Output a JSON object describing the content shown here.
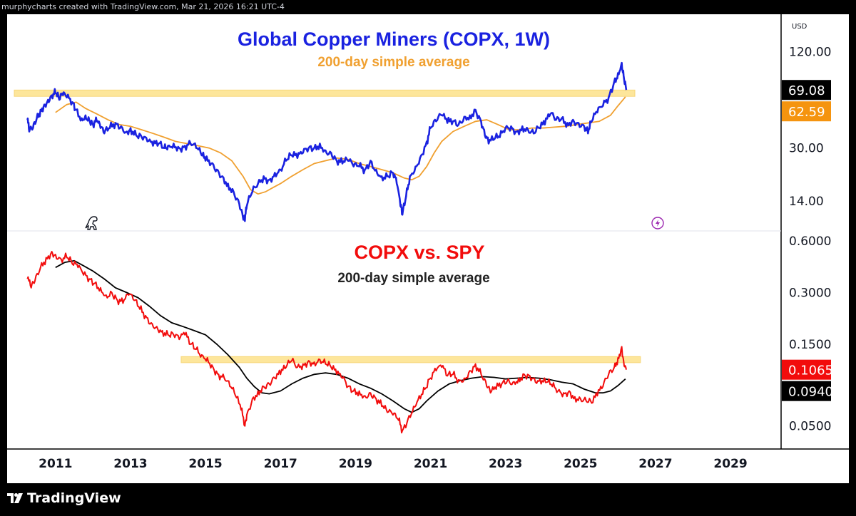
{
  "header": {
    "attribution": "murphycharts created with TradingView.com, Mar 21, 2026 16:21 UTC-4"
  },
  "footer": {
    "brand": "TradingView"
  },
  "chart_data": [
    {
      "type": "line",
      "title": "Global Copper Miners (COPX, 1W)",
      "subtitle": "200-day simple average",
      "currency": "USD",
      "yscale": "log",
      "ylim": [
        9.5,
        185
      ],
      "yticks": [
        {
          "value": 120,
          "label": "120.00"
        },
        {
          "value": 30,
          "label": "30.00"
        },
        {
          "value": 14,
          "label": "14.00"
        }
      ],
      "price_badges": [
        {
          "value": 69.08,
          "label": "69.08",
          "color": "#000000"
        },
        {
          "value": 62.59,
          "label": "62.59",
          "color": "#f5940f"
        }
      ],
      "resistance_zone": {
        "x_start": 2009.9,
        "x_end": 2026.45,
        "y_low": 63,
        "y_high": 69
      },
      "colors": {
        "price": "#1a22e0",
        "average": "#f0a030",
        "title": "#1a22e0",
        "subtitle": "#f0a030",
        "zone": "#fde28a"
      },
      "series": [
        {
          "name": "COPX",
          "x": [
            2010.25,
            2010.3,
            2010.4,
            2010.5,
            2010.6,
            2010.7,
            2010.8,
            2010.9,
            2011.0,
            2011.1,
            2011.2,
            2011.3,
            2011.45,
            2011.55,
            2011.7,
            2011.8,
            2011.9,
            2012.0,
            2012.1,
            2012.2,
            2012.3,
            2012.45,
            2012.6,
            2012.75,
            2012.9,
            2013.0,
            2013.15,
            2013.3,
            2013.45,
            2013.6,
            2013.75,
            2013.9,
            2014.0,
            2014.15,
            2014.3,
            2014.45,
            2014.6,
            2014.75,
            2014.9,
            2015.0,
            2015.15,
            2015.3,
            2015.45,
            2015.6,
            2015.75,
            2015.9,
            2016.0,
            2016.05,
            2016.1,
            2016.25,
            2016.4,
            2016.55,
            2016.7,
            2016.85,
            2017.0,
            2017.15,
            2017.3,
            2017.45,
            2017.6,
            2017.75,
            2017.9,
            2018.05,
            2018.2,
            2018.35,
            2018.5,
            2018.65,
            2018.8,
            2018.95,
            2019.1,
            2019.25,
            2019.4,
            2019.55,
            2019.7,
            2019.85,
            2020.0,
            2020.1,
            2020.2,
            2020.25,
            2020.35,
            2020.45,
            2020.6,
            2020.75,
            2020.9,
            2021.0,
            2021.15,
            2021.3,
            2021.45,
            2021.6,
            2021.75,
            2021.9,
            2022.05,
            2022.2,
            2022.35,
            2022.45,
            2022.55,
            2022.7,
            2022.85,
            2023.0,
            2023.15,
            2023.3,
            2023.45,
            2023.6,
            2023.75,
            2023.9,
            2024.05,
            2024.2,
            2024.35,
            2024.5,
            2024.65,
            2024.8,
            2024.95,
            2025.1,
            2025.2,
            2025.3,
            2025.45,
            2025.6,
            2025.75,
            2025.9,
            2026.0,
            2026.1,
            2026.15,
            2026.22
          ],
          "values": [
            45,
            38,
            40,
            46,
            52,
            56,
            60,
            64,
            66,
            60,
            64,
            62,
            58,
            52,
            46,
            48,
            45,
            42,
            44,
            40,
            37,
            40,
            43,
            41,
            38,
            40,
            36,
            35,
            33,
            31,
            32,
            30,
            31,
            32,
            30,
            31,
            32,
            30,
            27,
            25,
            24,
            22,
            20,
            18,
            16,
            13.5,
            11,
            10.5,
            13,
            16,
            18,
            20,
            19,
            21,
            22,
            25,
            27,
            26,
            28,
            30,
            30,
            32,
            29,
            28,
            25,
            24,
            25,
            23,
            23,
            22,
            25,
            22,
            20,
            20,
            21,
            18,
            13,
            11.5,
            15,
            20,
            23,
            27,
            33,
            40,
            44,
            48,
            43,
            44,
            42,
            47,
            48,
            52,
            44,
            36,
            32,
            34,
            35,
            40,
            41,
            38,
            41,
            39,
            37,
            40,
            42,
            49,
            45,
            46,
            43,
            45,
            43,
            41,
            37,
            44,
            50,
            55,
            62,
            78,
            88,
            102,
            85,
            69.08
          ]
        },
        {
          "name": "200-day simple average",
          "x": [
            2011.0,
            2011.3,
            2011.55,
            2011.8,
            2012.1,
            2012.4,
            2012.7,
            2013.0,
            2013.3,
            2013.6,
            2013.9,
            2014.2,
            2014.5,
            2014.8,
            2015.1,
            2015.4,
            2015.7,
            2016.0,
            2016.2,
            2016.4,
            2016.6,
            2016.8,
            2017.0,
            2017.3,
            2017.6,
            2017.9,
            2018.2,
            2018.5,
            2018.8,
            2019.1,
            2019.4,
            2019.7,
            2020.0,
            2020.3,
            2020.5,
            2020.7,
            2020.9,
            2021.1,
            2021.3,
            2021.6,
            2021.9,
            2022.2,
            2022.5,
            2022.8,
            2023.1,
            2023.4,
            2023.7,
            2024.0,
            2024.3,
            2024.6,
            2024.9,
            2025.2,
            2025.5,
            2025.8,
            2026.0,
            2026.2
          ],
          "values": [
            50,
            56,
            58,
            53,
            49,
            45,
            42,
            41,
            39,
            37,
            35,
            33,
            32,
            31,
            30,
            28,
            25,
            20,
            16.5,
            15.5,
            16,
            17,
            18,
            20,
            22,
            24,
            25,
            26,
            25.5,
            24,
            23,
            22,
            21,
            19.5,
            19,
            20,
            23,
            28,
            33,
            38,
            41,
            44,
            45,
            42,
            39,
            39,
            40,
            40,
            40.5,
            41,
            42,
            43,
            44,
            48,
            55,
            62.59
          ]
        }
      ]
    },
    {
      "type": "line",
      "title": "COPX vs. SPY",
      "subtitle": "200-day simple average",
      "yscale": "log",
      "ylim": [
        0.0385,
        0.68
      ],
      "yticks": [
        {
          "value": 0.6,
          "label": "0.6000"
        },
        {
          "value": 0.3,
          "label": "0.3000"
        },
        {
          "value": 0.15,
          "label": "0.1500"
        },
        {
          "value": 0.05,
          "label": "0.0500"
        }
      ],
      "price_badges": [
        {
          "value": 0.1065,
          "label": "0.1065",
          "color": "#f20c0c"
        },
        {
          "value": 0.094,
          "label": "0.0940",
          "color": "#000000"
        }
      ],
      "resistance_zone": {
        "x_start": 2014.35,
        "x_end": 2026.6,
        "y_low": 0.117,
        "y_high": 0.127
      },
      "colors": {
        "price": "#f20c0c",
        "average": "#000000",
        "title": "#f20c0c",
        "subtitle": "#222222",
        "zone": "#fde28a"
      },
      "series": [
        {
          "name": "COPX/SPY",
          "x": [
            2010.25,
            2010.35,
            2010.45,
            2010.6,
            2010.75,
            2010.9,
            2011.0,
            2011.15,
            2011.3,
            2011.45,
            2011.6,
            2011.75,
            2011.9,
            2012.05,
            2012.2,
            2012.35,
            2012.5,
            2012.65,
            2012.8,
            2012.95,
            2013.1,
            2013.25,
            2013.4,
            2013.55,
            2013.7,
            2013.85,
            2014.0,
            2014.15,
            2014.3,
            2014.45,
            2014.6,
            2014.75,
            2014.9,
            2015.05,
            2015.2,
            2015.35,
            2015.5,
            2015.65,
            2015.8,
            2015.95,
            2016.05,
            2016.1,
            2016.25,
            2016.4,
            2016.55,
            2016.7,
            2016.85,
            2017.0,
            2017.15,
            2017.3,
            2017.45,
            2017.6,
            2017.75,
            2017.9,
            2018.05,
            2018.2,
            2018.35,
            2018.5,
            2018.65,
            2018.8,
            2018.95,
            2019.1,
            2019.25,
            2019.4,
            2019.55,
            2019.7,
            2019.85,
            2020.0,
            2020.15,
            2020.25,
            2020.4,
            2020.55,
            2020.7,
            2020.85,
            2021.0,
            2021.15,
            2021.3,
            2021.45,
            2021.6,
            2021.75,
            2021.9,
            2022.05,
            2022.2,
            2022.35,
            2022.5,
            2022.6,
            2022.75,
            2022.9,
            2023.05,
            2023.2,
            2023.35,
            2023.5,
            2023.65,
            2023.8,
            2023.95,
            2024.1,
            2024.25,
            2024.4,
            2024.55,
            2024.7,
            2024.85,
            2025.0,
            2025.15,
            2025.3,
            2025.45,
            2025.6,
            2025.75,
            2025.9,
            2026.0,
            2026.1,
            2026.15,
            2026.22
          ],
          "values": [
            0.36,
            0.32,
            0.35,
            0.42,
            0.48,
            0.52,
            0.5,
            0.47,
            0.48,
            0.44,
            0.42,
            0.38,
            0.36,
            0.34,
            0.32,
            0.29,
            0.3,
            0.27,
            0.26,
            0.29,
            0.27,
            0.24,
            0.22,
            0.2,
            0.19,
            0.18,
            0.17,
            0.17,
            0.16,
            0.17,
            0.15,
            0.14,
            0.13,
            0.125,
            0.11,
            0.1,
            0.095,
            0.085,
            0.075,
            0.062,
            0.05,
            0.058,
            0.072,
            0.08,
            0.085,
            0.088,
            0.095,
            0.1,
            0.11,
            0.12,
            0.11,
            0.115,
            0.12,
            0.118,
            0.122,
            0.115,
            0.11,
            0.1,
            0.095,
            0.085,
            0.08,
            0.08,
            0.075,
            0.078,
            0.072,
            0.065,
            0.06,
            0.058,
            0.054,
            0.047,
            0.055,
            0.065,
            0.075,
            0.082,
            0.095,
            0.105,
            0.11,
            0.098,
            0.1,
            0.093,
            0.095,
            0.105,
            0.115,
            0.1,
            0.085,
            0.078,
            0.082,
            0.088,
            0.092,
            0.09,
            0.095,
            0.1,
            0.098,
            0.09,
            0.088,
            0.09,
            0.085,
            0.08,
            0.078,
            0.08,
            0.074,
            0.072,
            0.07,
            0.068,
            0.075,
            0.085,
            0.1,
            0.11,
            0.125,
            0.145,
            0.12,
            0.1065
          ]
        },
        {
          "name": "200-day simple average",
          "x": [
            2011.0,
            2011.25,
            2011.5,
            2011.75,
            2012.0,
            2012.3,
            2012.6,
            2012.9,
            2013.2,
            2013.5,
            2013.8,
            2014.1,
            2014.4,
            2014.7,
            2015.0,
            2015.3,
            2015.6,
            2015.9,
            2016.1,
            2016.3,
            2016.5,
            2016.7,
            2017.0,
            2017.3,
            2017.6,
            2017.9,
            2018.2,
            2018.5,
            2018.8,
            2019.1,
            2019.4,
            2019.7,
            2020.0,
            2020.3,
            2020.5,
            2020.7,
            2020.9,
            2021.2,
            2021.5,
            2021.8,
            2022.1,
            2022.4,
            2022.7,
            2023.0,
            2023.3,
            2023.6,
            2023.9,
            2024.2,
            2024.5,
            2024.8,
            2025.1,
            2025.4,
            2025.6,
            2025.8,
            2026.0,
            2026.2
          ],
          "values": [
            0.42,
            0.45,
            0.46,
            0.43,
            0.4,
            0.36,
            0.32,
            0.3,
            0.28,
            0.25,
            0.22,
            0.2,
            0.19,
            0.18,
            0.17,
            0.15,
            0.13,
            0.11,
            0.095,
            0.085,
            0.078,
            0.077,
            0.08,
            0.088,
            0.095,
            0.1,
            0.102,
            0.1,
            0.095,
            0.088,
            0.083,
            0.077,
            0.07,
            0.063,
            0.06,
            0.063,
            0.07,
            0.08,
            0.088,
            0.092,
            0.095,
            0.097,
            0.096,
            0.094,
            0.095,
            0.096,
            0.095,
            0.093,
            0.09,
            0.088,
            0.082,
            0.078,
            0.078,
            0.08,
            0.086,
            0.094
          ]
        }
      ]
    }
  ],
  "x_axis": {
    "range": [
      2009.9,
      2030.35
    ],
    "ticks": [
      {
        "value": 2011,
        "label": "2011"
      },
      {
        "value": 2013,
        "label": "2013"
      },
      {
        "value": 2015,
        "label": "2015"
      },
      {
        "value": 2017,
        "label": "2017"
      },
      {
        "value": 2019,
        "label": "2019"
      },
      {
        "value": 2021,
        "label": "2021"
      },
      {
        "value": 2023,
        "label": "2023"
      },
      {
        "value": 2025,
        "label": "2025"
      },
      {
        "value": 2027,
        "label": "2027"
      },
      {
        "value": 2029,
        "label": "2029"
      }
    ]
  }
}
